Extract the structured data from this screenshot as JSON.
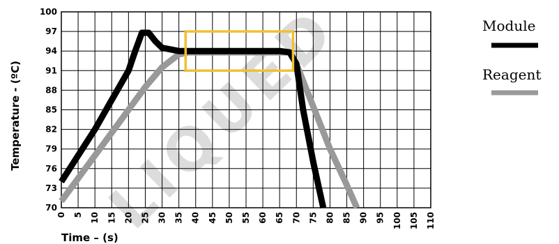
{
  "watermark": "LIQUED",
  "chart_data": {
    "type": "line",
    "xlabel": "Time – (s)",
    "ylabel": "Temperature - (ºC)",
    "xlim": [
      0,
      110
    ],
    "ylim": [
      70,
      100
    ],
    "x_ticks": [
      "0",
      "5",
      "10",
      "15",
      "20",
      "25",
      "30",
      "35",
      "40",
      "45",
      "50",
      "55",
      "60",
      "65",
      "70",
      "75",
      "80",
      "85",
      "90",
      "95",
      "100",
      "105",
      "110"
    ],
    "y_ticks": [
      "70",
      "73",
      "76",
      "79",
      "82",
      "85",
      "88",
      "91",
      "94",
      "97",
      "100"
    ],
    "grid": true,
    "legend_position": "right",
    "highlight_box": {
      "x": [
        37,
        69
      ],
      "y": [
        91,
        97
      ],
      "color": "#f0c030"
    },
    "series": [
      {
        "name": "Module",
        "color": "#000000",
        "points": [
          [
            0,
            74
          ],
          [
            5,
            78
          ],
          [
            10,
            82
          ],
          [
            15,
            86.5
          ],
          [
            20,
            91
          ],
          [
            22,
            94
          ],
          [
            24,
            96.8
          ],
          [
            26,
            96.8
          ],
          [
            28,
            95.5
          ],
          [
            30,
            94.5
          ],
          [
            35,
            94
          ],
          [
            40,
            94
          ],
          [
            50,
            94
          ],
          [
            60,
            94
          ],
          [
            65,
            94
          ],
          [
            68,
            93.8
          ],
          [
            70,
            92
          ],
          [
            72,
            85
          ],
          [
            75,
            77
          ],
          [
            78,
            70
          ]
        ]
      },
      {
        "name": "Reagent",
        "color": "#999999",
        "points": [
          [
            0,
            71
          ],
          [
            5,
            74.5
          ],
          [
            10,
            78
          ],
          [
            15,
            81.5
          ],
          [
            20,
            85
          ],
          [
            25,
            88.5
          ],
          [
            30,
            91.5
          ],
          [
            35,
            93.5
          ],
          [
            38,
            93.8
          ],
          [
            50,
            93.8
          ],
          [
            60,
            93.8
          ],
          [
            68,
            93.8
          ],
          [
            70,
            92
          ],
          [
            75,
            85.5
          ],
          [
            80,
            79
          ],
          [
            85,
            73.5
          ],
          [
            88,
            70
          ]
        ]
      }
    ]
  }
}
